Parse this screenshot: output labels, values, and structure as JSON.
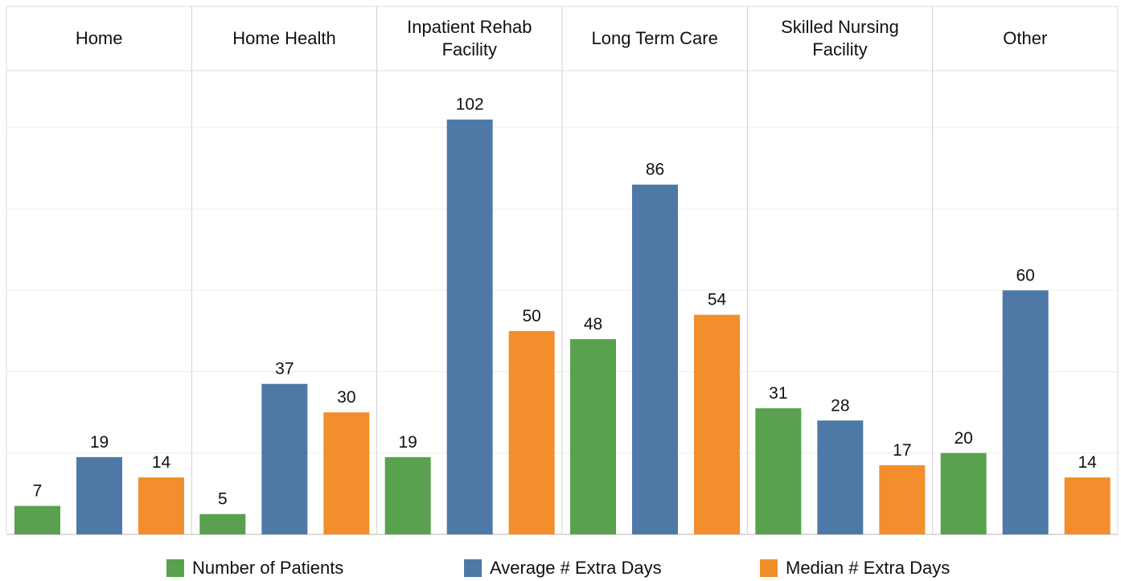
{
  "chart_data": {
    "type": "bar",
    "categories": [
      "Home",
      "Home Health",
      "Inpatient Rehab Facility",
      "Long Term Care",
      "Skilled Nursing Facility",
      "Other"
    ],
    "series": [
      {
        "name": "Number of Patients",
        "color": "#59a14f",
        "values": [
          7,
          5,
          19,
          48,
          31,
          20
        ]
      },
      {
        "name": "Average # Extra Days",
        "color": "#4e79a7",
        "values": [
          19,
          37,
          102,
          86,
          28,
          60
        ]
      },
      {
        "name": "Median # Extra Days",
        "color": "#f28e2b",
        "values": [
          14,
          30,
          50,
          54,
          17,
          14
        ]
      }
    ],
    "ylim": [
      0,
      114
    ],
    "yticks": [
      0,
      20,
      40,
      60,
      80,
      100
    ],
    "grid": true
  }
}
